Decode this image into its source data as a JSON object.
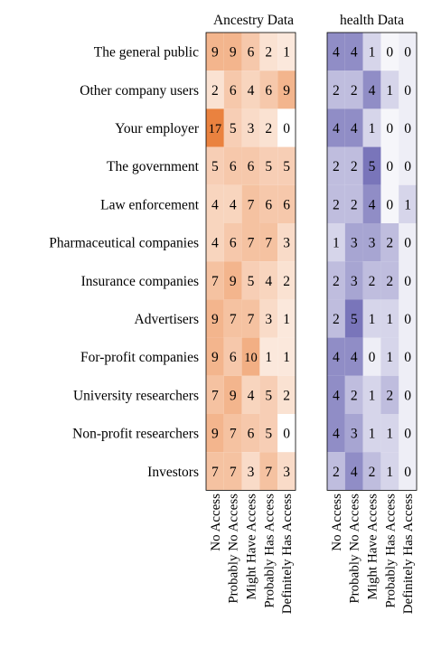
{
  "chart_data": {
    "type": "heatmap",
    "rows": [
      "The general public",
      "Other company users",
      "Your employer",
      "The government",
      "Law enforcement",
      "Pharmaceutical companies",
      "Insurance companies",
      "Advertisers",
      "For-profit companies",
      "University researchers",
      "Non-profit researchers",
      "Investors"
    ],
    "columns": [
      "No Access",
      "Probably No Access",
      "Might Have Access",
      "Probably Has Access",
      "Definitely Has Access"
    ],
    "panels": [
      {
        "title": "Ancestry Data",
        "color": "#e8742a",
        "values": [
          [
            9,
            9,
            6,
            2,
            1
          ],
          [
            2,
            6,
            4,
            6,
            9
          ],
          [
            17,
            5,
            3,
            2,
            0
          ],
          [
            5,
            6,
            6,
            5,
            5
          ],
          [
            4,
            4,
            7,
            6,
            6
          ],
          [
            4,
            6,
            7,
            7,
            3
          ],
          [
            7,
            9,
            5,
            4,
            2
          ],
          [
            9,
            7,
            7,
            3,
            1
          ],
          [
            9,
            6,
            10,
            1,
            1
          ],
          [
            7,
            9,
            4,
            5,
            2
          ],
          [
            9,
            7,
            6,
            5,
            0
          ],
          [
            7,
            7,
            3,
            7,
            3
          ]
        ]
      },
      {
        "title": "health Data",
        "color": "#6a66b2",
        "values": [
          [
            4,
            4,
            1,
            0,
            0
          ],
          [
            2,
            2,
            4,
            1,
            0
          ],
          [
            4,
            4,
            1,
            0,
            0
          ],
          [
            2,
            2,
            5,
            0,
            0
          ],
          [
            2,
            2,
            4,
            0,
            1
          ],
          [
            1,
            3,
            3,
            2,
            0
          ],
          [
            2,
            3,
            2,
            2,
            0
          ],
          [
            2,
            5,
            1,
            1,
            0
          ],
          [
            4,
            4,
            0,
            1,
            0
          ],
          [
            4,
            2,
            1,
            2,
            0
          ],
          [
            4,
            3,
            1,
            1,
            0
          ],
          [
            2,
            4,
            2,
            1,
            0
          ]
        ]
      }
    ]
  }
}
